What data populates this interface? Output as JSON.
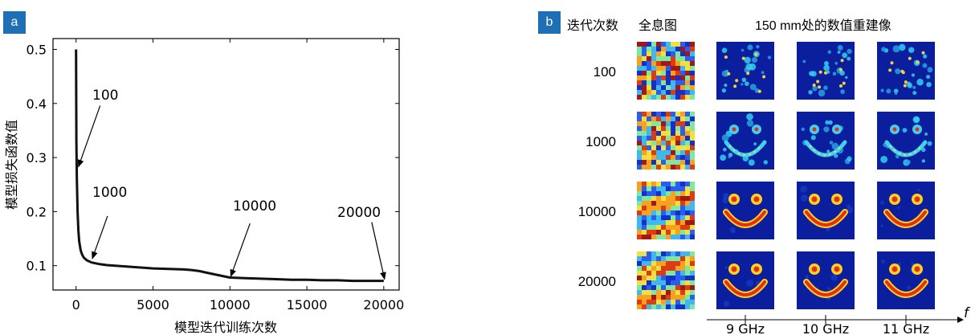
{
  "panel_a": {
    "label": "a",
    "chart_data": {
      "type": "line",
      "xlabel": "模型迭代训练次数",
      "ylabel": "模型损失函数值",
      "xlim": [
        -1500,
        21000
      ],
      "ylim": [
        0.055,
        0.52
      ],
      "xticks": [
        0,
        5000,
        10000,
        15000,
        20000
      ],
      "xtick_labels": [
        "0",
        "5000",
        "10000",
        "15000",
        "20000"
      ],
      "yticks": [
        0.1,
        0.2,
        0.3,
        0.4,
        0.5
      ],
      "ytick_labels": [
        "0.1",
        "0.2",
        "0.3",
        "0.4",
        "0.5"
      ],
      "grid": false,
      "series": [
        {
          "x": [
            0,
            20,
            50,
            100,
            150,
            200,
            300,
            400,
            500,
            700,
            1000,
            1500,
            2000,
            3000,
            4000,
            5000,
            6000,
            7000,
            7500,
            8000,
            8500,
            9000,
            9500,
            10000,
            11000,
            12000,
            13000,
            14000,
            15000,
            16000,
            17000,
            18000,
            19000,
            20000
          ],
          "y": [
            0.5,
            0.33,
            0.26,
            0.2,
            0.165,
            0.145,
            0.128,
            0.12,
            0.115,
            0.11,
            0.106,
            0.103,
            0.101,
            0.099,
            0.097,
            0.095,
            0.094,
            0.093,
            0.092,
            0.09,
            0.087,
            0.084,
            0.081,
            0.078,
            0.077,
            0.076,
            0.075,
            0.074,
            0.074,
            0.073,
            0.073,
            0.072,
            0.072,
            0.072
          ]
        }
      ],
      "annotations": [
        {
          "text": "100",
          "x": 100,
          "y": 0.28
        },
        {
          "text": "1000",
          "x": 1000,
          "y": 0.11
        },
        {
          "text": "10000",
          "x": 10000,
          "y": 0.077
        },
        {
          "text": "20000",
          "x": 20000,
          "y": 0.072
        }
      ]
    }
  },
  "panel_b": {
    "label": "b",
    "header_iterations": "迭代次数",
    "header_hologram": "全息图",
    "header_recon": "150 mm处的数值重建像",
    "rows": [
      "100",
      "1000",
      "10000",
      "20000"
    ],
    "freq_labels": [
      "9 GHz",
      "10 GHz",
      "11 GHz"
    ],
    "axis_symbol": "f",
    "colors": {
      "background": "#0b1f9e",
      "hot": "#e03010",
      "warm": "#ffd020"
    }
  }
}
